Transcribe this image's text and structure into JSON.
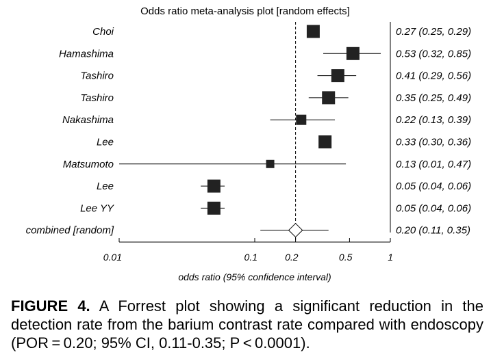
{
  "chart_data": {
    "type": "forest",
    "title": "Odds ratio meta-analysis plot [random effects]",
    "xlabel": "odds ratio (95% confidence interval)",
    "xscale": "log",
    "xlim": [
      0.01,
      1
    ],
    "xticks": [
      {
        "value": 0.01,
        "label": "0.01"
      },
      {
        "value": 0.1,
        "label": "0.1"
      },
      {
        "value": 0.2,
        "label": "0.2"
      },
      {
        "value": 0.5,
        "label": "0.5"
      },
      {
        "value": 1,
        "label": "1"
      }
    ],
    "reference_line": 0.2,
    "studies": [
      {
        "name": "Choi",
        "or": 0.27,
        "lo": 0.25,
        "hi": 0.29,
        "ci_text": "0.27 (0.25, 0.29)",
        "weight": "large"
      },
      {
        "name": "Hamashima",
        "or": 0.53,
        "lo": 0.32,
        "hi": 0.85,
        "ci_text": "0.53 (0.32, 0.85)",
        "weight": "large"
      },
      {
        "name": "Tashiro",
        "or": 0.41,
        "lo": 0.29,
        "hi": 0.56,
        "ci_text": "0.41 (0.29, 0.56)",
        "weight": "large"
      },
      {
        "name": "Tashiro",
        "or": 0.35,
        "lo": 0.25,
        "hi": 0.49,
        "ci_text": "0.35 (0.25, 0.49)",
        "weight": "large"
      },
      {
        "name": "Nakashima",
        "or": 0.22,
        "lo": 0.13,
        "hi": 0.39,
        "ci_text": "0.22 (0.13, 0.39)",
        "weight": "medium"
      },
      {
        "name": "Lee",
        "or": 0.33,
        "lo": 0.3,
        "hi": 0.36,
        "ci_text": "0.33 (0.30, 0.36)",
        "weight": "large"
      },
      {
        "name": "Matsumoto",
        "or": 0.13,
        "lo": 0.01,
        "hi": 0.47,
        "ci_text": "0.13 (0.01, 0.47)",
        "weight": "small"
      },
      {
        "name": "Lee",
        "or": 0.05,
        "lo": 0.04,
        "hi": 0.06,
        "ci_text": "0.05 (0.04, 0.06)",
        "weight": "large"
      },
      {
        "name": "Lee YY",
        "or": 0.05,
        "lo": 0.04,
        "hi": 0.06,
        "ci_text": "0.05 (0.04, 0.06)",
        "weight": "large"
      }
    ],
    "combined": {
      "name": "combined [random]",
      "or": 0.2,
      "lo": 0.11,
      "hi": 0.35,
      "ci_text": "0.20 (0.11, 0.35)"
    }
  },
  "caption": {
    "label": "FIGURE 4.",
    "text": " A Forrest plot showing a significant reduction in the detection rate from the barium contrast rate compared with endoscopy (POR = 0.20; 95% CI, 0.11-0.35; P < 0.0001)."
  }
}
